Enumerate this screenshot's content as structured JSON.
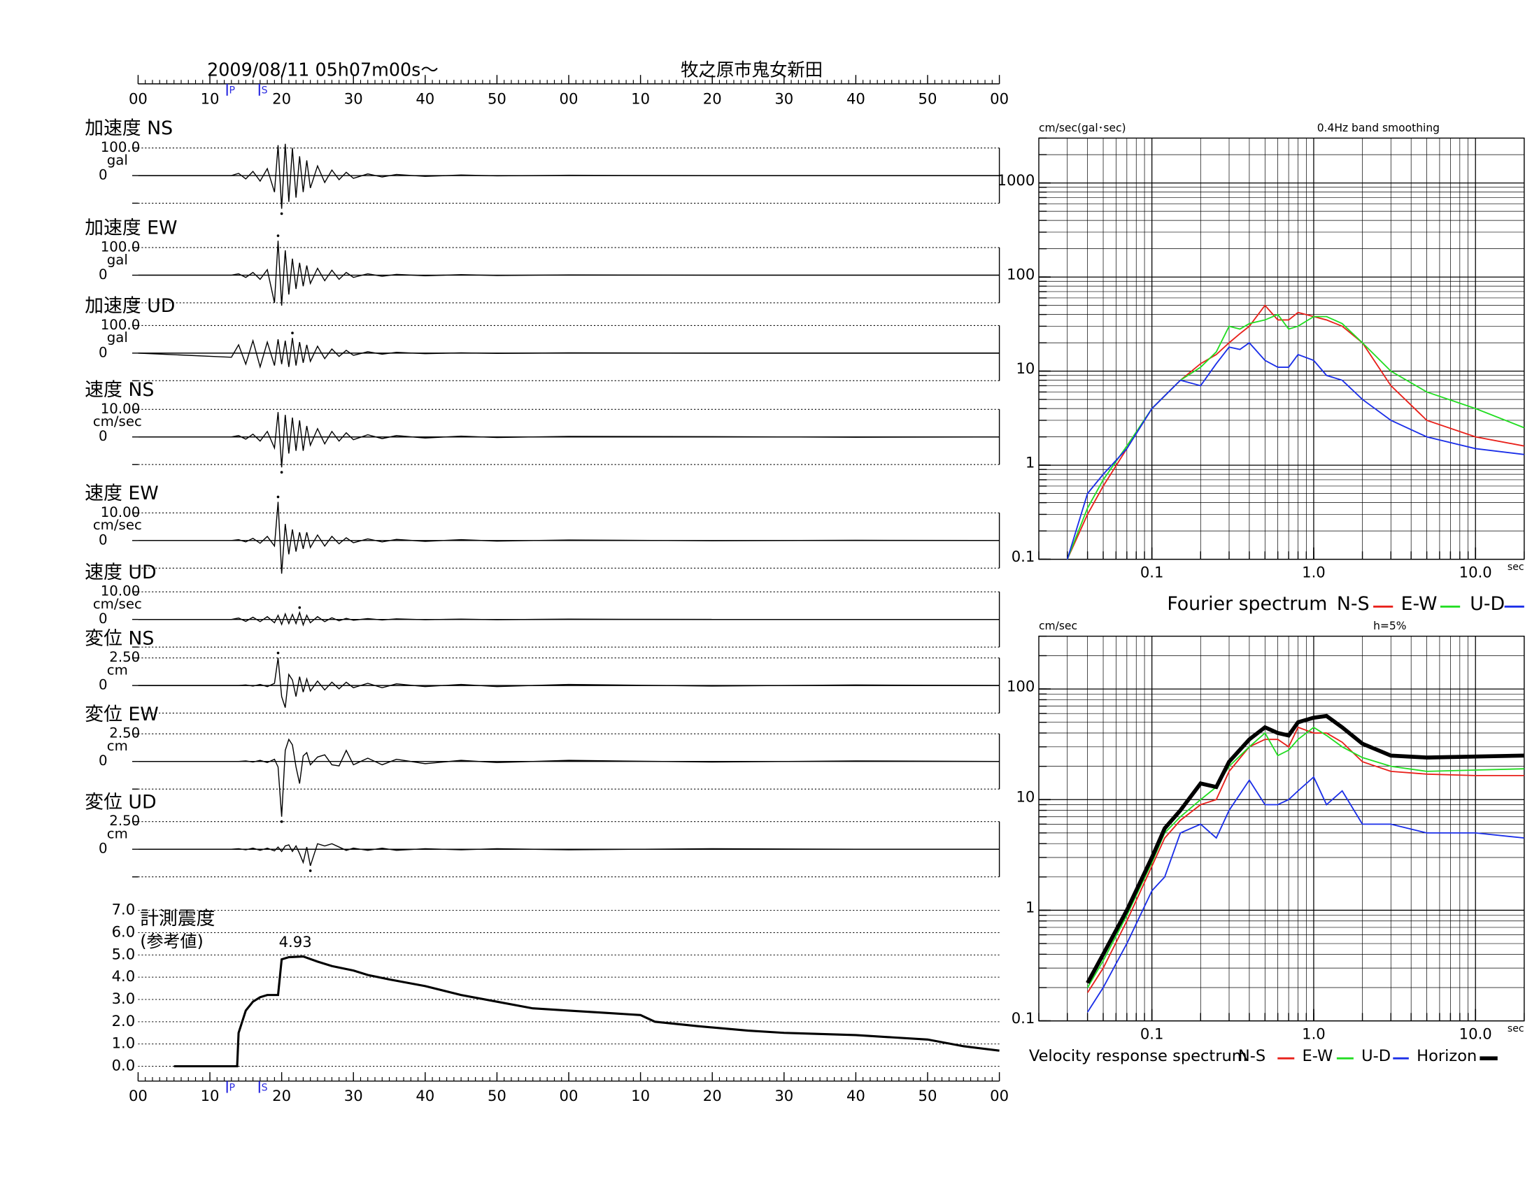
{
  "header": {
    "datetime": "2009/08/11  05h07m00s〜",
    "station": "牧之原市鬼女新田"
  },
  "chart_data": [
    {
      "type": "waveform",
      "xlim": [
        0,
        120
      ],
      "xticks": [
        {
          "value": 0,
          "label": "00"
        },
        {
          "value": 10,
          "label": "10"
        },
        {
          "value": 20,
          "label": "20"
        },
        {
          "value": 30,
          "label": "30"
        },
        {
          "value": 40,
          "label": "40"
        },
        {
          "value": 50,
          "label": "50"
        },
        {
          "value": 60,
          "label": "00"
        },
        {
          "value": 70,
          "label": "10"
        },
        {
          "value": 80,
          "label": "20"
        },
        {
          "value": 90,
          "label": "30"
        },
        {
          "value": 100,
          "label": "40"
        },
        {
          "value": 110,
          "label": "50"
        },
        {
          "value": 120,
          "label": "00"
        }
      ],
      "markers": [
        {
          "label": "P",
          "x": 12.4
        },
        {
          "label": "S",
          "x": 16.9
        }
      ],
      "x": [
        0,
        13,
        14,
        15,
        16,
        17,
        18,
        19,
        19.5,
        20,
        20.5,
        21,
        21.5,
        22,
        22.5,
        23,
        23.5,
        24,
        25,
        26,
        27,
        28,
        29,
        30,
        32,
        34,
        36,
        40,
        45,
        50,
        60,
        80,
        100,
        120
      ],
      "series": [
        {
          "name": "加速度 NS",
          "unit": "gal",
          "color": "#000000",
          "ylim": [
            -100,
            100
          ],
          "yticks": [
            {
              "value": 100,
              "label": "100.0"
            },
            0
          ],
          "values": [
            0,
            0,
            8,
            -12,
            15,
            -20,
            25,
            -60,
            110,
            -120,
            115,
            -95,
            100,
            -80,
            70,
            -60,
            55,
            -45,
            35,
            -25,
            20,
            -15,
            12,
            -10,
            6,
            -5,
            4,
            -3,
            2,
            -1,
            1,
            0,
            0,
            0
          ]
        },
        {
          "name": "加速度 EW",
          "unit": "gal",
          "color": "#000000",
          "ylim": [
            -100,
            100
          ],
          "yticks": [
            {
              "value": 100,
              "label": "100.0"
            },
            0
          ],
          "values": [
            0,
            0,
            5,
            -8,
            10,
            -15,
            20,
            -100,
            125,
            -110,
            90,
            -70,
            60,
            -50,
            45,
            -40,
            35,
            -30,
            25,
            -20,
            18,
            -15,
            10,
            -8,
            5,
            -4,
            3,
            -2,
            2,
            -1,
            1,
            0,
            0,
            0
          ]
        },
        {
          "name": "加速度 UD",
          "unit": "gal",
          "color": "#000000",
          "ylim": [
            -100,
            100
          ],
          "yticks": [
            {
              "value": 100,
              "label": "100.0"
            },
            0
          ],
          "values": [
            0,
            -15,
            30,
            -40,
            45,
            -50,
            40,
            -45,
            50,
            -40,
            45,
            -50,
            55,
            -45,
            40,
            -35,
            30,
            -30,
            25,
            -20,
            15,
            -12,
            10,
            -8,
            5,
            -4,
            3,
            -2,
            1,
            -1,
            1,
            0,
            0,
            0
          ]
        },
        {
          "name": "速度 NS",
          "unit": "cm/sec",
          "color": "#000000",
          "ylim": [
            -10,
            10
          ],
          "yticks": [
            {
              "value": 10,
              "label": "10.00"
            },
            0
          ],
          "values": [
            0,
            0,
            0.5,
            -0.8,
            1,
            -1.5,
            2,
            -4,
            9,
            -11,
            8,
            -6,
            7,
            -5,
            6,
            -5,
            4,
            -3,
            3,
            -2.5,
            2,
            -1.5,
            1.5,
            -1,
            0.8,
            -0.6,
            0.5,
            -0.4,
            0.3,
            -0.2,
            0.2,
            0.1,
            -0.1,
            0
          ]
        },
        {
          "name": "速度 EW",
          "unit": "cm/sec",
          "color": "#000000",
          "ylim": [
            -10,
            10
          ],
          "yticks": [
            {
              "value": 10,
              "label": "10.00"
            },
            0
          ],
          "values": [
            0,
            0,
            0.3,
            -0.5,
            0.8,
            -1,
            1.5,
            -2,
            14,
            -12,
            6,
            -5,
            4,
            -4,
            3,
            -3,
            3,
            -2.5,
            2,
            -2,
            1.5,
            -1.2,
            1,
            -0.8,
            0.6,
            -0.5,
            0.4,
            -0.3,
            0.3,
            -0.2,
            0.2,
            -0.1,
            0.1,
            0
          ]
        },
        {
          "name": "速度 UD",
          "unit": "cm/sec",
          "color": "#000000",
          "ylim": [
            -10,
            10
          ],
          "yticks": [
            {
              "value": 10,
              "label": "10.00"
            },
            0
          ],
          "values": [
            0,
            0,
            0.5,
            -0.7,
            0.8,
            -0.8,
            1,
            -1.2,
            1.5,
            -1.8,
            2,
            -1.5,
            1.8,
            -1.5,
            2.5,
            -2,
            1.5,
            -1.2,
            1,
            -0.8,
            0.6,
            -0.5,
            0.4,
            -0.3,
            0.3,
            -0.2,
            0.2,
            -0.1,
            0.1,
            -0.1,
            0.1,
            0,
            0,
            0
          ]
        },
        {
          "name": "変位 NS",
          "unit": "cm",
          "color": "#000000",
          "ylim": [
            -2.5,
            2.5
          ],
          "yticks": [
            {
              "value": 2.5,
              "label": "2.50"
            },
            0
          ],
          "values": [
            0,
            0,
            0,
            0.05,
            -0.05,
            0.1,
            -0.1,
            0.2,
            2.5,
            -1,
            -2,
            1,
            0.5,
            -1,
            0.8,
            -0.6,
            0.6,
            -0.5,
            0.4,
            -0.4,
            0.3,
            -0.3,
            0.3,
            -0.2,
            0.2,
            -0.2,
            0.15,
            -0.1,
            0.1,
            -0.1,
            0.1,
            -0.05,
            0.05,
            0
          ]
        },
        {
          "name": "変位 EW",
          "unit": "cm",
          "color": "#000000",
          "ylim": [
            -2.5,
            2.5
          ],
          "yticks": [
            {
              "value": 2.5,
              "label": "2.50"
            },
            0
          ],
          "values": [
            0,
            0,
            0,
            0.05,
            -0.05,
            0.1,
            -0.1,
            0.2,
            -0.5,
            -5,
            1,
            2,
            1.5,
            -0.5,
            -2,
            0.5,
            0.8,
            -0.3,
            0.4,
            0.6,
            -0.3,
            -0.4,
            1,
            -0.3,
            0.3,
            -0.3,
            0.2,
            -0.2,
            0.1,
            -0.1,
            0.1,
            -0.05,
            0.05,
            0
          ]
        },
        {
          "name": "変位 UD",
          "unit": "cm",
          "color": "#000000",
          "ylim": [
            -2.5,
            2.5
          ],
          "yticks": [
            {
              "value": 2.5,
              "label": "2.50"
            },
            0
          ],
          "values": [
            0,
            0,
            0.05,
            -0.05,
            0.1,
            -0.1,
            0.1,
            -0.15,
            0.2,
            -0.2,
            0.3,
            0.4,
            -0.2,
            0.3,
            -0.4,
            -1.2,
            0.2,
            -1.5,
            0.5,
            0.3,
            0.5,
            0.2,
            -0.1,
            0.1,
            -0.1,
            0.1,
            -0.1,
            0.05,
            -0.05,
            0.05,
            -0.05,
            0.05,
            0,
            0
          ]
        }
      ]
    },
    {
      "type": "line",
      "title": "計測震度",
      "subtitle": "(参考値)",
      "color": "#000000",
      "xlim": [
        0,
        120
      ],
      "xticks": [
        {
          "value": 0,
          "label": "00"
        },
        {
          "value": 10,
          "label": "10"
        },
        {
          "value": 20,
          "label": "20"
        },
        {
          "value": 30,
          "label": "30"
        },
        {
          "value": 40,
          "label": "40"
        },
        {
          "value": 50,
          "label": "50"
        },
        {
          "value": 60,
          "label": "00"
        },
        {
          "value": 70,
          "label": "10"
        },
        {
          "value": 80,
          "label": "20"
        },
        {
          "value": 90,
          "label": "30"
        },
        {
          "value": 100,
          "label": "40"
        },
        {
          "value": 110,
          "label": "50"
        },
        {
          "value": 120,
          "label": "00"
        }
      ],
      "markers": [
        {
          "label": "P",
          "x": 12.4
        },
        {
          "label": "S",
          "x": 16.9
        }
      ],
      "ylim": [
        0,
        7
      ],
      "yticks": [
        {
          "value": 0,
          "label": "0.0"
        },
        {
          "value": 1,
          "label": "1.0"
        },
        {
          "value": 2,
          "label": "2.0"
        },
        {
          "value": 3,
          "label": "3.0"
        },
        {
          "value": 4,
          "label": "4.0"
        },
        {
          "value": 5,
          "label": "5.0"
        },
        {
          "value": 6,
          "label": "6.0"
        },
        {
          "value": 7,
          "label": "7.0"
        }
      ],
      "grid": true,
      "x": [
        5,
        13.8,
        14,
        15,
        16,
        17,
        18,
        19.5,
        20,
        21,
        23,
        25,
        27,
        30,
        32,
        35,
        40,
        45,
        50,
        55,
        60,
        65,
        70,
        72,
        78,
        85,
        90,
        100,
        105,
        110,
        115,
        120
      ],
      "values": [
        0,
        0,
        1.5,
        2.5,
        2.9,
        3.1,
        3.2,
        3.2,
        4.8,
        4.9,
        4.93,
        4.7,
        4.5,
        4.3,
        4.1,
        3.9,
        3.6,
        3.2,
        2.9,
        2.6,
        2.5,
        2.4,
        2.3,
        2.0,
        1.8,
        1.6,
        1.5,
        1.4,
        1.3,
        1.2,
        0.9,
        0.7
      ],
      "annotation": {
        "text": "4.93",
        "x": 23,
        "y": 4.93
      }
    },
    {
      "type": "loglog",
      "legend_title": "Fourier spectrum",
      "y_unit": "cm/sec(gal･sec)",
      "note": "0.4Hz band smoothing",
      "x_unit": "sec",
      "xlim": [
        0.02,
        20
      ],
      "xticks": [
        0.1,
        {
          "value": 1,
          "label": "1.0"
        },
        {
          "value": 10,
          "label": "10.0"
        }
      ],
      "ylim": [
        0.1,
        3000
      ],
      "yticks": [
        0.1,
        1,
        10,
        100,
        1000
      ],
      "grid": true,
      "x": [
        0.03,
        0.04,
        0.05,
        0.07,
        0.1,
        0.15,
        0.2,
        0.25,
        0.3,
        0.35,
        0.4,
        0.5,
        0.6,
        0.7,
        0.8,
        1.0,
        1.2,
        1.5,
        2,
        3,
        5,
        10,
        20
      ],
      "series": [
        {
          "name": "N-S",
          "color": "#e8201a",
          "values": [
            0.1,
            0.3,
            0.6,
            1.5,
            4,
            8,
            12,
            15,
            20,
            25,
            30,
            50,
            35,
            35,
            42,
            38,
            35,
            30,
            20,
            7,
            3,
            2,
            1.6
          ]
        },
        {
          "name": "E-W",
          "color": "#22dd22",
          "values": [
            0.1,
            0.35,
            0.7,
            1.6,
            4,
            8,
            11,
            16,
            30,
            28,
            32,
            35,
            40,
            28,
            30,
            38,
            38,
            32,
            20,
            10,
            6,
            4,
            2.5
          ]
        },
        {
          "name": "U-D",
          "color": "#1a2ee8",
          "values": [
            0.1,
            0.5,
            0.8,
            1.5,
            4,
            8,
            7,
            12,
            18,
            17,
            20,
            13,
            11,
            11,
            15,
            13,
            9,
            8,
            5,
            3,
            2,
            1.5,
            1.3
          ]
        }
      ]
    },
    {
      "type": "loglog",
      "legend_title": "Velocity response spectrum",
      "y_unit": "cm/sec",
      "note": "h=5%",
      "x_unit": "sec",
      "xlim": [
        0.02,
        20
      ],
      "xticks": [
        0.1,
        {
          "value": 1,
          "label": "1.0"
        },
        {
          "value": 10,
          "label": "10.0"
        }
      ],
      "ylim": [
        0.1,
        300
      ],
      "yticks": [
        0.1,
        1,
        10,
        100
      ],
      "grid": true,
      "x": [
        0.04,
        0.05,
        0.07,
        0.1,
        0.12,
        0.15,
        0.2,
        0.25,
        0.3,
        0.4,
        0.5,
        0.6,
        0.7,
        0.8,
        1.0,
        1.2,
        1.5,
        2,
        3,
        5,
        10,
        20
      ],
      "series": [
        {
          "name": "N-S",
          "color": "#e8201a",
          "values": [
            0.18,
            0.3,
            0.8,
            2.5,
            4.5,
            6.5,
            9,
            10,
            18,
            30,
            35,
            35,
            30,
            45,
            40,
            40,
            33,
            22,
            18,
            17,
            16.5,
            16.5
          ]
        },
        {
          "name": "E-W",
          "color": "#22dd22",
          "values": [
            0.2,
            0.35,
            0.9,
            2.7,
            5,
            7,
            10,
            13,
            20,
            30,
            40,
            25,
            28,
            35,
            45,
            38,
            30,
            24,
            20,
            18,
            18.5,
            19
          ]
        },
        {
          "name": "U-D",
          "color": "#1a2ee8",
          "values": [
            0.12,
            0.2,
            0.5,
            1.5,
            2,
            5,
            6,
            4.5,
            8,
            15,
            9,
            9,
            10,
            12,
            16,
            9,
            12,
            6,
            6,
            5,
            5,
            4.5
          ]
        },
        {
          "name": "Horizon",
          "color": "#000000",
          "values": [
            0.22,
            0.4,
            1.0,
            3,
            5.5,
            8,
            14,
            13,
            22,
            35,
            45,
            40,
            38,
            50,
            55,
            57,
            45,
            32,
            25,
            24,
            24.5,
            25
          ]
        }
      ]
    }
  ]
}
